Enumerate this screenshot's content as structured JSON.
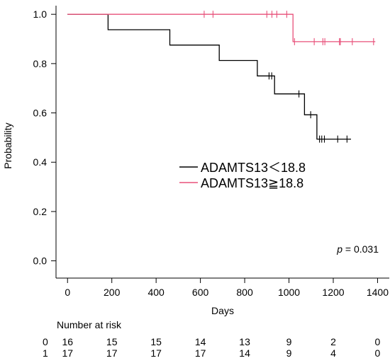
{
  "chart_data": {
    "type": "line",
    "step": true,
    "title": "",
    "xlabel": "Days",
    "ylabel": "Probability",
    "xlim": [
      0,
      1400
    ],
    "ylim": [
      0,
      1.0
    ],
    "x_ticks": [
      "0",
      "200",
      "400",
      "600",
      "800",
      "1000",
      "1200",
      "1400"
    ],
    "y_ticks": [
      "0.0",
      "0.2",
      "0.4",
      "0.6",
      "0.8",
      "1.0"
    ],
    "series": [
      {
        "name": "ADAMTS13＜18.8",
        "color": "#000000",
        "steps": [
          [
            0,
            1.0
          ],
          [
            183,
            0.9375
          ],
          [
            462,
            0.875
          ],
          [
            685,
            0.8125
          ],
          [
            857,
            0.75
          ],
          [
            935,
            0.6771
          ],
          [
            1070,
            0.5925
          ],
          [
            1126,
            0.4938
          ],
          [
            1280,
            0.4938
          ]
        ],
        "censored": [
          [
            910,
            0.75
          ],
          [
            922,
            0.75
          ],
          [
            1045,
            0.6771
          ],
          [
            1098,
            0.5925
          ],
          [
            1138,
            0.4938
          ],
          [
            1148,
            0.4938
          ],
          [
            1160,
            0.4938
          ],
          [
            1220,
            0.4938
          ],
          [
            1262,
            0.4938
          ]
        ]
      },
      {
        "name": "ADAMTS13≧18.8",
        "color": "#e8507a",
        "steps": [
          [
            0,
            1.0
          ],
          [
            1018,
            0.8889
          ],
          [
            1390,
            0.8889
          ]
        ],
        "censored": [
          [
            617,
            1.0
          ],
          [
            657,
            1.0
          ],
          [
            900,
            1.0
          ],
          [
            923,
            1.0
          ],
          [
            945,
            1.0
          ],
          [
            990,
            1.0
          ],
          [
            1025,
            0.8889
          ],
          [
            1114,
            0.8889
          ],
          [
            1153,
            0.8889
          ],
          [
            1162,
            0.8889
          ],
          [
            1228,
            0.8889
          ],
          [
            1232,
            0.8889
          ],
          [
            1286,
            0.8889
          ],
          [
            1382,
            0.8889
          ]
        ]
      }
    ],
    "annotation": {
      "italic": "p",
      "text": " = 0.031",
      "x": 1400,
      "y": 0.08
    },
    "legend": "center-right"
  },
  "risk_table": {
    "title": "Number at risk",
    "rows": [
      {
        "label": "0",
        "values": [
          "16",
          "15",
          "15",
          "14",
          "13",
          "9",
          "2",
          "0"
        ]
      },
      {
        "label": "1",
        "values": [
          "17",
          "17",
          "17",
          "17",
          "14",
          "9",
          "4",
          "0"
        ]
      }
    ]
  }
}
